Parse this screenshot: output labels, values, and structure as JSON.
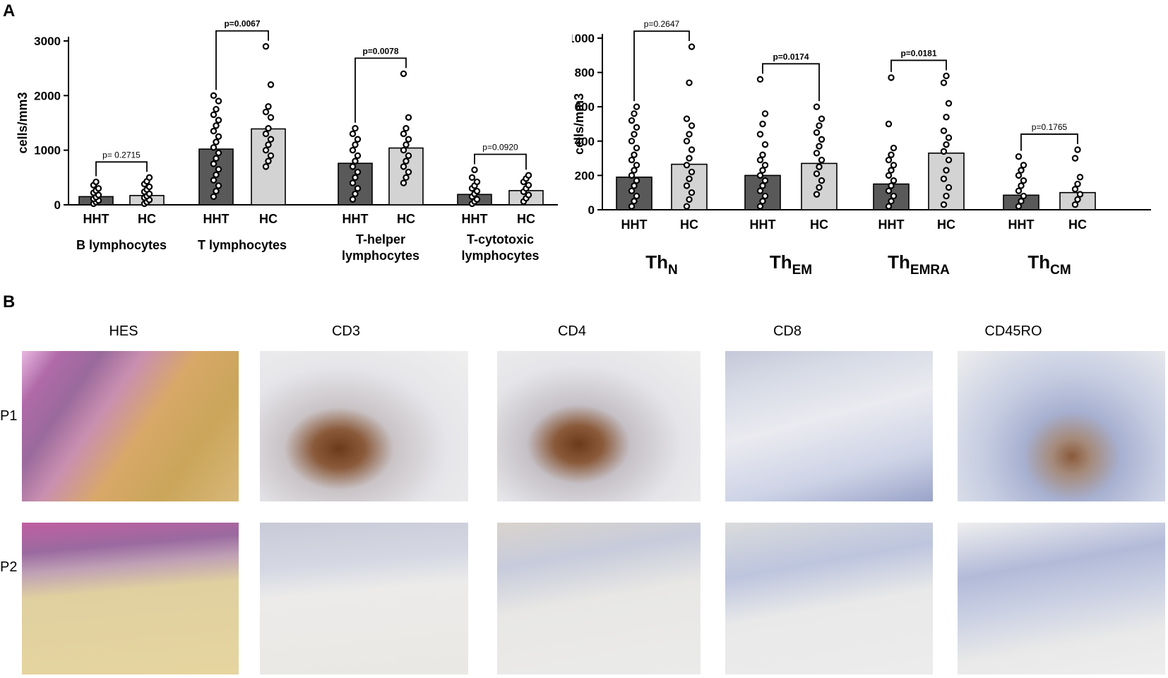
{
  "panel_a_label": "A",
  "panel_b_label": "B",
  "chart_data": [
    {
      "type": "bar",
      "ylabel": "cells/mm3",
      "ylim": [
        0,
        3000
      ],
      "yticks": [
        "0",
        "1000",
        "2000",
        "3000"
      ],
      "group_label": [
        "HHT",
        "HC"
      ],
      "colors": {
        "HHT": "#595959",
        "HC": "#d3d3d3"
      },
      "panels": [
        {
          "title": "B lymphocytes",
          "values": [
            150,
            170
          ],
          "pvalue": "p= 0.2715",
          "bold_p": false,
          "points": [
            [
              20,
              50,
              80,
              110,
              140,
              180,
              220,
              260,
              300,
              360,
              420
            ],
            [
              20,
              50,
              90,
              130,
              160,
              200,
              240,
              280,
              330,
              380,
              430,
              500
            ]
          ]
        },
        {
          "title": "T lymphocytes",
          "values": [
            1020,
            1390
          ],
          "pvalue": "p=0.0067",
          "bold_p": true,
          "points": [
            [
              150,
              250,
              350,
              450,
              550,
              650,
              750,
              850,
              950,
              1050,
              1150,
              1250,
              1350,
              1450,
              1550,
              1650,
              1750,
              1900,
              2000
            ],
            [
              700,
              800,
              900,
              1000,
              1100,
              1200,
              1300,
              1400,
              1600,
              1700,
              1800,
              2200,
              2900
            ]
          ]
        },
        {
          "title": "T-helper lymphocytes",
          "values": [
            760,
            1040
          ],
          "pvalue": "p=0.0078",
          "bold_p": true,
          "points": [
            [
              100,
              200,
              300,
              400,
              500,
              600,
              700,
              800,
              900,
              1000,
              1100,
              1200,
              1300,
              1400
            ],
            [
              400,
              500,
              600,
              700,
              800,
              900,
              1000,
              1100,
              1200,
              1300,
              1400,
              1600,
              2400
            ]
          ]
        },
        {
          "title": "T-cytotoxic lymphocytes",
          "values": [
            190,
            260
          ],
          "pvalue": "p=0.0920",
          "bold_p": false,
          "points": [
            [
              20,
              60,
              100,
              150,
              200,
              250,
              300,
              350,
              420,
              500,
              640
            ],
            [
              60,
              120,
              180,
              240,
              300,
              360,
              420,
              480,
              540
            ]
          ]
        }
      ]
    },
    {
      "type": "bar",
      "ylabel": "cells/mm3",
      "ylim": [
        0,
        1000
      ],
      "yticks": [
        "0",
        "200",
        "400",
        "600",
        "800",
        "1000"
      ],
      "group_label": [
        "HHT",
        "HC"
      ],
      "colors": {
        "HHT": "#595959",
        "HC": "#d3d3d3"
      },
      "panels": [
        {
          "title": "Th",
          "subscript": "N",
          "values": [
            190,
            265
          ],
          "pvalue": "p=0.2647",
          "bold_p": false,
          "points": [
            [
              20,
              50,
              80,
              110,
              140,
              170,
              200,
              230,
              260,
              290,
              320,
              360,
              400,
              440,
              480,
              520,
              560,
              600
            ],
            [
              20,
              60,
              100,
              140,
              180,
              220,
              260,
              300,
              350,
              400,
              440,
              490,
              530,
              740,
              950
            ]
          ]
        },
        {
          "title": "Th",
          "subscript": "EM",
          "values": [
            200,
            270
          ],
          "pvalue": "p=0.0174",
          "bold_p": true,
          "points": [
            [
              20,
              50,
              80,
              110,
              140,
              170,
              200,
              230,
              260,
              290,
              320,
              380,
              440,
              500,
              560,
              760
            ],
            [
              90,
              130,
              170,
              210,
              250,
              290,
              330,
              370,
              410,
              450,
              490,
              530,
              600
            ]
          ]
        },
        {
          "title": "Th",
          "subscript": "EMRA",
          "values": [
            150,
            330
          ],
          "pvalue": "p=0.0181",
          "bold_p": true,
          "points": [
            [
              20,
              50,
              80,
              110,
              140,
              170,
              200,
              230,
              260,
              290,
              320,
              360,
              500,
              770
            ],
            [
              30,
              80,
              130,
              180,
              230,
              290,
              340,
              380,
              420,
              460,
              540,
              620,
              740,
              780
            ]
          ]
        },
        {
          "title": "Th",
          "subscript": "CM",
          "values": [
            85,
            100
          ],
          "pvalue": "p=0.1765",
          "bold_p": false,
          "points": [
            [
              20,
              50,
              80,
              110,
              140,
              170,
              200,
              230,
              260,
              310
            ],
            [
              30,
              60,
              90,
              120,
              150,
              190,
              300,
              350
            ]
          ]
        }
      ]
    }
  ],
  "histology": {
    "columns": [
      "HES",
      "CD3",
      "CD4",
      "CD8",
      "CD45RO"
    ],
    "rows": [
      "P1",
      "P2"
    ]
  }
}
